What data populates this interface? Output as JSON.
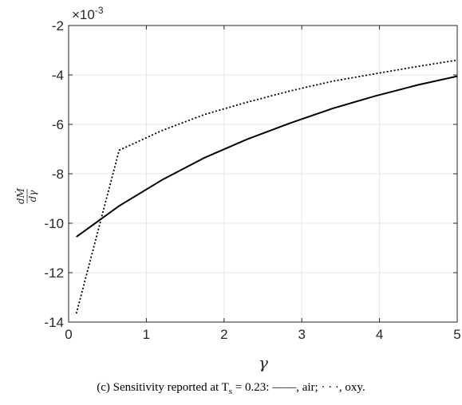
{
  "chart_data": {
    "type": "line",
    "xlabel": "γ",
    "ylabel": "dṀ/dγ",
    "ylabel_num": "dṀ",
    "ylabel_den": "dγ",
    "xlim": [
      0,
      5
    ],
    "ylim": [
      -14,
      -2
    ],
    "xticks": [
      0,
      1,
      2,
      3,
      4,
      5
    ],
    "yticks": [
      -2,
      -4,
      -6,
      -8,
      -10,
      -12,
      -14
    ],
    "y_multiplier": "×10",
    "y_multiplier_exp": "-3",
    "grid": true,
    "series": [
      {
        "style": "solid",
        "x": [
          0.1,
          0.65,
          1.2,
          1.75,
          2.3,
          2.85,
          3.4,
          3.95,
          4.5,
          5.0
        ],
        "y": [
          -10.55,
          -9.3,
          -8.25,
          -7.35,
          -6.6,
          -5.95,
          -5.35,
          -4.85,
          -4.4,
          -4.05
        ]
      },
      {
        "style": "dotted",
        "x": [
          0.1,
          0.65,
          1.2,
          1.75,
          2.3,
          2.85,
          3.4,
          3.95,
          4.5,
          5.0
        ],
        "y": [
          -13.65,
          -7.05,
          -6.25,
          -5.6,
          -5.1,
          -4.65,
          -4.25,
          -3.95,
          -3.65,
          -3.4
        ]
      }
    ]
  },
  "caption": {
    "prefix": "(c) Sensitivity reported at T",
    "sub": "s",
    "suffix": " = 0.23: ——, air; · · ·, oxy."
  }
}
